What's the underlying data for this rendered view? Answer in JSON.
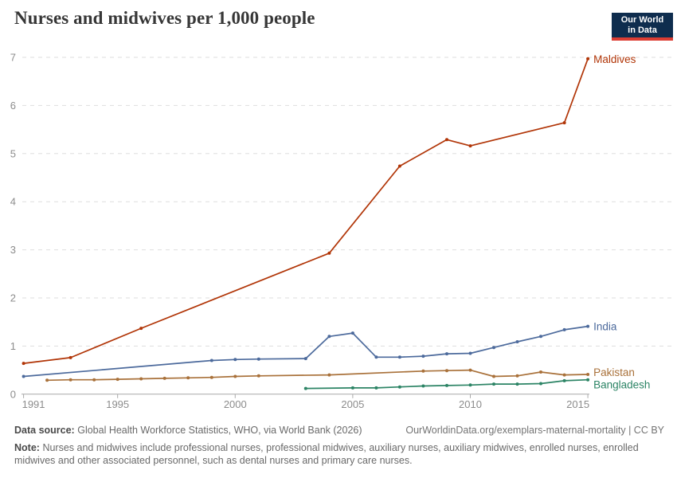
{
  "header": {
    "title": "Nurses and midwives per 1,000 people",
    "logo": {
      "line1": "Our World",
      "line2": "in Data",
      "bg_color": "#0f2d4e",
      "accent_color": "#dc3d33"
    }
  },
  "chart_data": {
    "type": "line",
    "title": "Nurses and midwives per 1,000 people",
    "xlabel": "",
    "ylabel": "",
    "xlim": [
      1991,
      2015.5
    ],
    "ylim": [
      0,
      7
    ],
    "grid": "horizontal-dashed",
    "legend_position": "end-of-line-labels",
    "xticks": [
      1991,
      1995,
      2000,
      2005,
      2010,
      2015
    ],
    "yticks": [
      0,
      1,
      2,
      3,
      4,
      5,
      6,
      7
    ],
    "series": [
      {
        "name": "Maldives",
        "color": "#B13507",
        "points": [
          [
            1991,
            0.64
          ],
          [
            1993,
            0.76
          ],
          [
            1996,
            1.37
          ],
          [
            2004,
            2.93
          ],
          [
            2007,
            4.74
          ],
          [
            2009,
            5.29
          ],
          [
            2010,
            5.16
          ],
          [
            2014,
            5.64
          ],
          [
            2015,
            6.97
          ]
        ]
      },
      {
        "name": "India",
        "color": "#4C6A9C",
        "points": [
          [
            1991,
            0.37
          ],
          [
            1999,
            0.7
          ],
          [
            2000,
            0.72
          ],
          [
            2001,
            0.73
          ],
          [
            2003,
            0.74
          ],
          [
            2004,
            1.2
          ],
          [
            2005,
            1.27
          ],
          [
            2006,
            0.77
          ],
          [
            2007,
            0.77
          ],
          [
            2008,
            0.79
          ],
          [
            2009,
            0.84
          ],
          [
            2010,
            0.85
          ],
          [
            2011,
            0.97
          ],
          [
            2012,
            1.09
          ],
          [
            2013,
            1.2
          ],
          [
            2014,
            1.34
          ],
          [
            2015,
            1.41
          ]
        ]
      },
      {
        "name": "Pakistan",
        "color": "#A9713A",
        "points": [
          [
            1992,
            0.29
          ],
          [
            1993,
            0.3
          ],
          [
            1994,
            0.3
          ],
          [
            1995,
            0.31
          ],
          [
            1996,
            0.32
          ],
          [
            1997,
            0.33
          ],
          [
            1998,
            0.34
          ],
          [
            1999,
            0.35
          ],
          [
            2000,
            0.37
          ],
          [
            2001,
            0.38
          ],
          [
            2004,
            0.4
          ],
          [
            2008,
            0.48
          ],
          [
            2009,
            0.49
          ],
          [
            2010,
            0.5
          ],
          [
            2011,
            0.37
          ],
          [
            2012,
            0.38
          ],
          [
            2013,
            0.46
          ],
          [
            2014,
            0.4
          ],
          [
            2015,
            0.41
          ]
        ]
      },
      {
        "name": "Bangladesh",
        "color": "#2C8465",
        "points": [
          [
            2003,
            0.12
          ],
          [
            2005,
            0.13
          ],
          [
            2006,
            0.13
          ],
          [
            2007,
            0.15
          ],
          [
            2008,
            0.17
          ],
          [
            2009,
            0.18
          ],
          [
            2010,
            0.19
          ],
          [
            2011,
            0.21
          ],
          [
            2012,
            0.21
          ],
          [
            2013,
            0.22
          ],
          [
            2014,
            0.28
          ],
          [
            2015,
            0.3
          ]
        ]
      }
    ],
    "axis_colors": {
      "gridline": "#dedede",
      "axis_line": "#a9a9a9",
      "tick_label": "#8c8c8c"
    }
  },
  "footer": {
    "datasource_label": "Data source:",
    "datasource_text": "Global Health Workforce Statistics, WHO, via World Bank (2026)",
    "link_text": "OurWorldinData.org/exemplars-maternal-mortality | CC BY",
    "note_label": "Note:",
    "note_text": "Nurses and midwives include professional nurses, professional midwives, auxiliary nurses, auxiliary midwives, enrolled nurses, enrolled midwives and other associated personnel, such as dental nurses and primary care nurses."
  }
}
